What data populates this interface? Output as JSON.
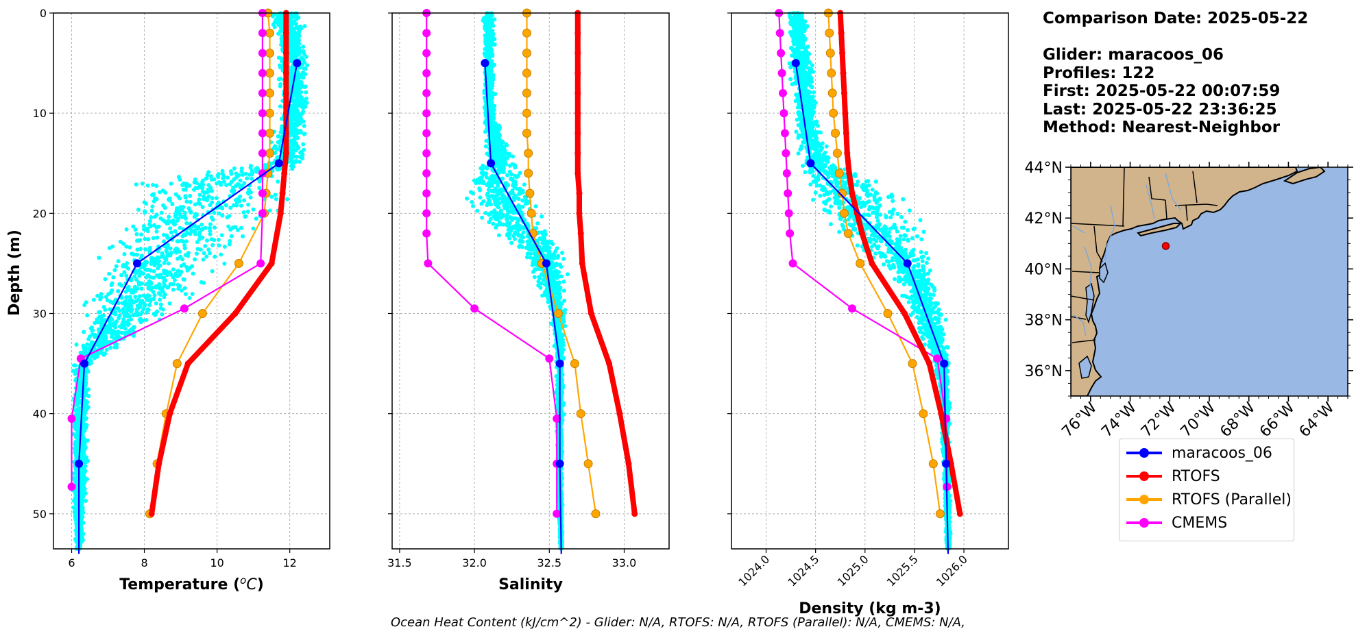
{
  "info": {
    "comparison_date": "Comparison Date: 2025-05-22",
    "glider": "Glider: maracoos_06",
    "profiles": "Profiles: 122",
    "first": "First: 2025-05-22 00:07:59",
    "last": "Last: 2025-05-22 23:36:25",
    "method": "Method: Nearest-Neighbor"
  },
  "footer": "Ocean Heat Content (kJ/cm^2) - Glider: N/A,  RTOFS: N/A,  RTOFS (Parallel): N/A,  CMEMS: N/A,",
  "colors": {
    "glider": "#0000ff",
    "rtofs": "#ff0000",
    "rtofs_parallel": "#ffa500",
    "cmems": "#ff00ff",
    "glider_scatter": "#00ffff",
    "land": "#d2b48c",
    "ocean": "#9ab8e4"
  },
  "legend": [
    {
      "label": "maracoos_06",
      "color": "#0000ff"
    },
    {
      "label": "RTOFS",
      "color": "#ff0000"
    },
    {
      "label": "RTOFS (Parallel)",
      "color": "#ffa500"
    },
    {
      "label": "CMEMS",
      "color": "#ff00ff"
    }
  ],
  "map": {
    "lat_labels": [
      "44°N",
      "42°N",
      "40°N",
      "38°N",
      "36°N"
    ],
    "lon_labels": [
      "76°W",
      "74°W",
      "72°W",
      "70°W",
      "68°W",
      "66°W",
      "64°W"
    ],
    "glider_position": {
      "lon": -72.2,
      "lat": 40.9
    }
  },
  "chart_data": [
    {
      "type": "line",
      "xlabel": "Temperature (°C)",
      "ylabel": "Depth (m)",
      "xlim": [
        5.5,
        13.1
      ],
      "ylim": [
        53.5,
        0
      ],
      "xticks": [
        6,
        8,
        10,
        12
      ],
      "yticks": [
        0,
        10,
        20,
        30,
        40,
        50
      ],
      "grid": true,
      "series": [
        {
          "name": "maracoos_06",
          "depth": [
            5,
            15,
            25,
            35,
            45,
            54
          ],
          "values": [
            12.2,
            11.7,
            7.8,
            6.35,
            6.2,
            6.2
          ]
        },
        {
          "name": "RTOFS",
          "depth": [
            0,
            2,
            4,
            6,
            8,
            10,
            12,
            14,
            16,
            18,
            20,
            25,
            30,
            35,
            40,
            45,
            50
          ],
          "values": [
            11.9,
            11.9,
            11.9,
            11.9,
            11.9,
            11.9,
            11.9,
            11.9,
            11.85,
            11.8,
            11.75,
            11.5,
            10.5,
            9.2,
            8.7,
            8.4,
            8.2
          ]
        },
        {
          "name": "RTOFS (Parallel)",
          "depth": [
            0,
            2,
            4,
            6,
            8,
            10,
            12,
            14,
            16,
            18,
            20,
            25,
            30,
            35,
            40,
            45,
            50
          ],
          "values": [
            11.4,
            11.45,
            11.45,
            11.45,
            11.45,
            11.45,
            11.45,
            11.45,
            11.4,
            11.35,
            11.3,
            10.6,
            9.6,
            8.9,
            8.6,
            8.35,
            8.15
          ]
        },
        {
          "name": "CMEMS",
          "depth": [
            0,
            2,
            4,
            6,
            8,
            10,
            12,
            14,
            16,
            18,
            20,
            25,
            29.5,
            34.5,
            40.5,
            47.3
          ],
          "values": [
            11.25,
            11.25,
            11.25,
            11.25,
            11.25,
            11.25,
            11.25,
            11.25,
            11.25,
            11.25,
            11.25,
            11.2,
            9.1,
            6.25,
            6.0,
            6.0
          ]
        }
      ],
      "scatter_envelope": {
        "name": "maracoos_06",
        "depth": [
          0,
          5,
          10,
          15,
          17,
          20,
          25,
          30,
          35,
          40,
          45,
          50,
          54
        ],
        "min": [
          11.3,
          11.6,
          11.6,
          11.2,
          7.0,
          6.7,
          6.3,
          6.1,
          6.0,
          6.0,
          6.0,
          6.0,
          6.1
        ],
        "max": [
          12.5,
          12.6,
          12.6,
          12.5,
          12.4,
          12.2,
          10.5,
          9.0,
          6.6,
          6.5,
          6.5,
          6.4,
          6.3
        ]
      }
    },
    {
      "type": "line",
      "xlabel": "Salinity",
      "xlim": [
        31.45,
        33.3
      ],
      "ylim": [
        53.5,
        0
      ],
      "xticks": [
        31.5,
        32.0,
        32.5,
        33.0
      ],
      "yticks": [
        0,
        10,
        20,
        30,
        40,
        50
      ],
      "grid": true,
      "series": [
        {
          "name": "maracoos_06",
          "depth": [
            5,
            15,
            25,
            35,
            45,
            54
          ],
          "values": [
            32.07,
            32.11,
            32.48,
            32.57,
            32.57,
            32.58
          ]
        },
        {
          "name": "RTOFS",
          "depth": [
            0,
            2,
            4,
            6,
            8,
            10,
            12,
            14,
            16,
            18,
            20,
            22,
            25,
            30,
            35,
            40,
            45,
            50
          ],
          "values": [
            32.69,
            32.69,
            32.69,
            32.69,
            32.69,
            32.69,
            32.69,
            32.69,
            32.69,
            32.7,
            32.7,
            32.71,
            32.72,
            32.78,
            32.9,
            32.97,
            33.03,
            33.07
          ]
        },
        {
          "name": "RTOFS (Parallel)",
          "depth": [
            0,
            2,
            4,
            6,
            8,
            10,
            12,
            14,
            16,
            18,
            20,
            22,
            25,
            30,
            35,
            40,
            45,
            50
          ],
          "values": [
            32.35,
            32.35,
            32.35,
            32.35,
            32.35,
            32.35,
            32.35,
            32.36,
            32.36,
            32.37,
            32.38,
            32.39,
            32.45,
            32.56,
            32.67,
            32.71,
            32.76,
            32.81
          ]
        },
        {
          "name": "CMEMS",
          "depth": [
            0,
            2,
            4,
            6,
            8,
            10,
            12,
            14,
            16,
            18,
            20,
            22,
            25,
            29.5,
            34.5,
            40.5,
            45,
            50
          ],
          "values": [
            31.68,
            31.68,
            31.68,
            31.68,
            31.68,
            31.68,
            31.68,
            31.68,
            31.68,
            31.68,
            31.68,
            31.68,
            31.69,
            32.0,
            32.5,
            32.55,
            32.55,
            32.55
          ]
        }
      ],
      "scatter_envelope": {
        "name": "maracoos_06",
        "depth": [
          0,
          5,
          10,
          15,
          16,
          20,
          24,
          30,
          35,
          40,
          45,
          50,
          54
        ],
        "min": [
          32.05,
          32.05,
          32.05,
          32.05,
          31.9,
          31.95,
          32.3,
          32.5,
          32.54,
          32.54,
          32.55,
          32.56,
          32.57
        ],
        "max": [
          32.14,
          32.14,
          32.14,
          32.3,
          32.4,
          32.5,
          32.63,
          32.62,
          32.6,
          32.6,
          32.59,
          32.59,
          32.59
        ]
      }
    },
    {
      "type": "line",
      "xlabel": "Density (kg m-3)",
      "xlim": [
        1023.65,
        1026.45
      ],
      "ylim": [
        53.5,
        0
      ],
      "xticks": [
        1024.0,
        1024.5,
        1025.0,
        1025.5,
        1026.0
      ],
      "yticks": [
        0,
        10,
        20,
        30,
        40,
        50
      ],
      "grid": true,
      "series": [
        {
          "name": "maracoos_06",
          "depth": [
            5,
            15,
            25,
            35,
            45,
            54
          ],
          "values": [
            1024.3,
            1024.45,
            1025.43,
            1025.8,
            1025.82,
            1025.84
          ]
        },
        {
          "name": "RTOFS",
          "depth": [
            0,
            2,
            4,
            6,
            8,
            10,
            12,
            14,
            16,
            18,
            20,
            22,
            25,
            30,
            35,
            40,
            45,
            50
          ],
          "values": [
            1024.75,
            1024.76,
            1024.77,
            1024.78,
            1024.79,
            1024.8,
            1024.81,
            1024.82,
            1024.84,
            1024.87,
            1024.92,
            1024.97,
            1025.07,
            1025.4,
            1025.65,
            1025.77,
            1025.87,
            1025.96
          ]
        },
        {
          "name": "RTOFS (Parallel)",
          "depth": [
            0,
            2,
            4,
            6,
            8,
            10,
            12,
            14,
            16,
            18,
            20,
            22,
            25,
            30,
            35,
            40,
            45,
            50
          ],
          "values": [
            1024.63,
            1024.64,
            1024.65,
            1024.66,
            1024.67,
            1024.68,
            1024.7,
            1024.72,
            1024.74,
            1024.77,
            1024.79,
            1024.83,
            1024.95,
            1025.23,
            1025.48,
            1025.59,
            1025.69,
            1025.76
          ]
        },
        {
          "name": "CMEMS",
          "depth": [
            0,
            2,
            4,
            6,
            8,
            10,
            12,
            14,
            16,
            18,
            20,
            22,
            25,
            29.5,
            34.5,
            40.5,
            47.3
          ],
          "values": [
            1024.13,
            1024.14,
            1024.15,
            1024.16,
            1024.17,
            1024.18,
            1024.19,
            1024.2,
            1024.21,
            1024.22,
            1024.23,
            1024.24,
            1024.27,
            1024.87,
            1025.73,
            1025.82,
            1025.83
          ]
        }
      ],
      "scatter_envelope": {
        "name": "maracoos_06",
        "depth": [
          0,
          5,
          10,
          15,
          17,
          20,
          25,
          30,
          35,
          40,
          45,
          50,
          54
        ],
        "min": [
          1024.2,
          1024.2,
          1024.25,
          1024.3,
          1024.3,
          1024.35,
          1025.1,
          1025.4,
          1025.7,
          1025.75,
          1025.78,
          1025.8,
          1025.82
        ],
        "max": [
          1024.42,
          1024.5,
          1024.55,
          1024.7,
          1025.3,
          1025.6,
          1025.75,
          1025.85,
          1025.87,
          1025.87,
          1025.87,
          1025.87,
          1025.87
        ]
      }
    }
  ]
}
